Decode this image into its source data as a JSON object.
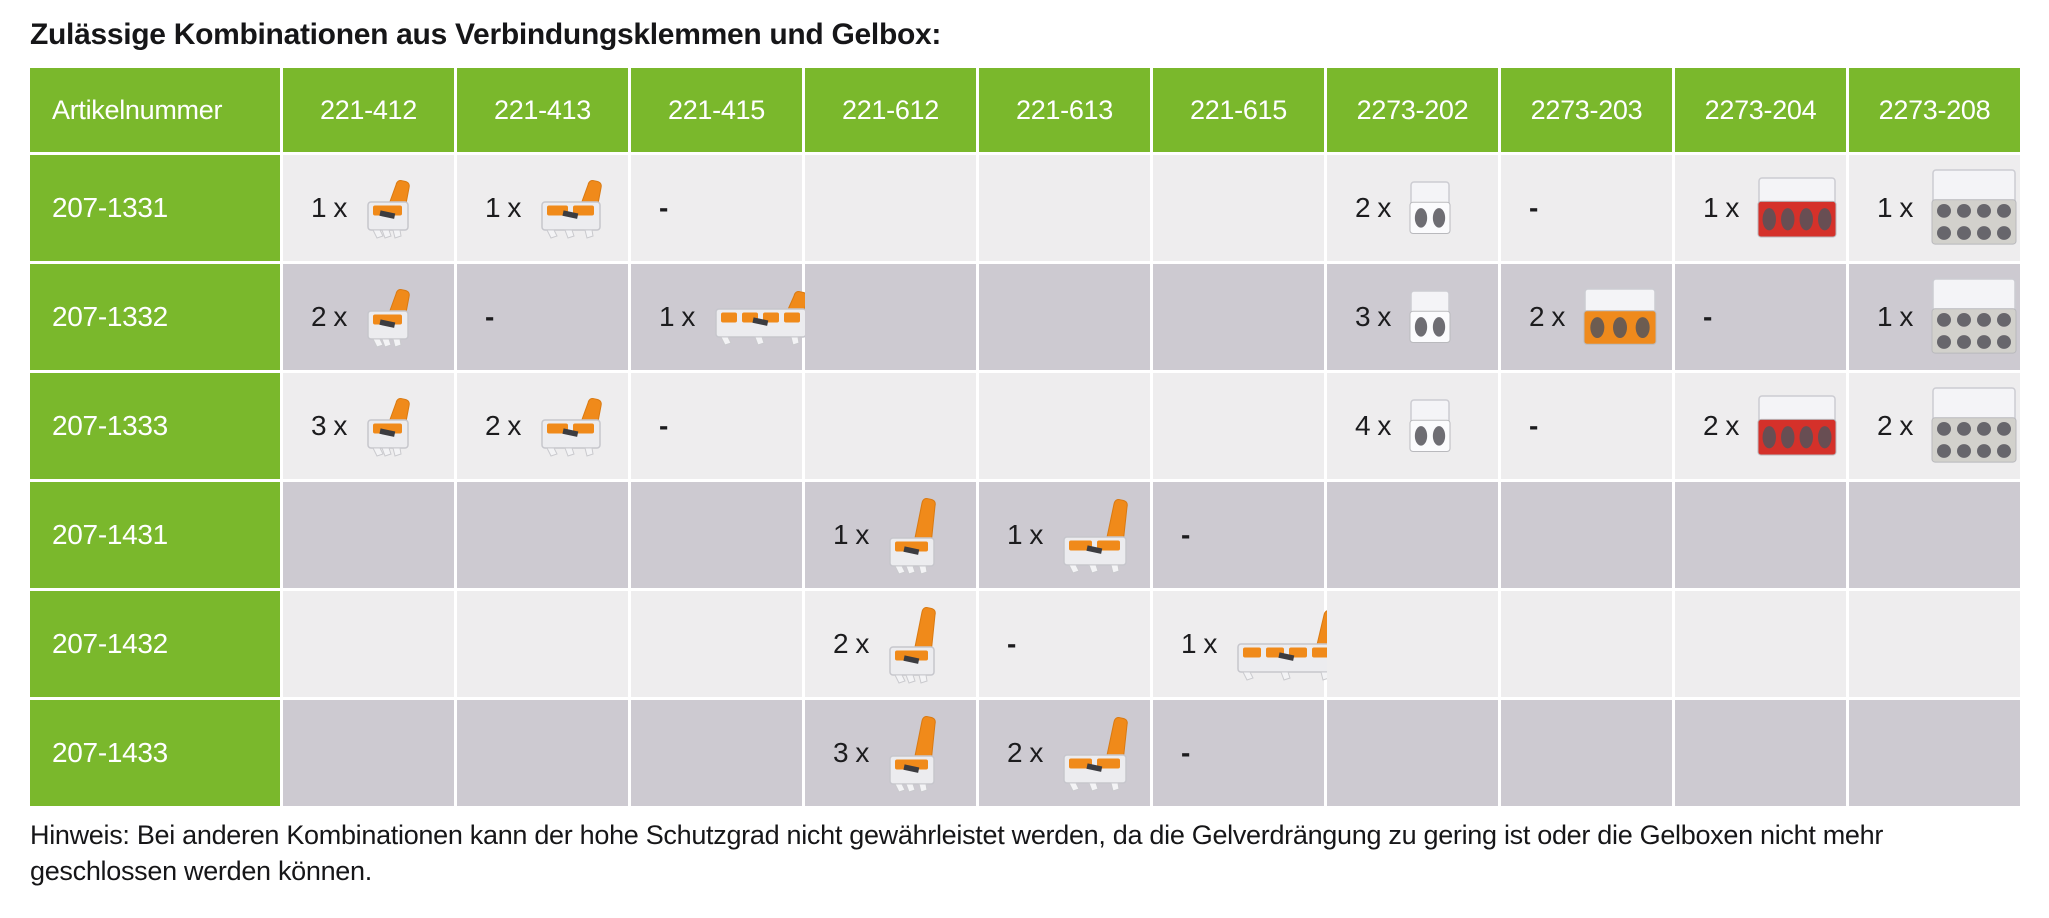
{
  "title": "Zulässige Kombinationen aus Verbindungsklemmen und Gelbox:",
  "note": "Hinweis: Bei anderen Kombinationen kann der hohe Schutzgrad nicht gewährleistet werden, da die Gelverdrängung zu gering ist oder die Gelboxen nicht mehr geschlossen werden können.",
  "colors": {
    "header_green": "#7ab82c",
    "row_light": "#eeedee",
    "row_dark": "#cdcad1",
    "lever_orange": "#f08a1a",
    "connector_red": "#d5312a",
    "connector_orange": "#ef8a1c",
    "connector_gray": "#d2d1cc",
    "text": "#161618"
  },
  "table": {
    "header": [
      "Artikelnummer",
      "221-412",
      "221-413",
      "221-415",
      "221-612",
      "221-613",
      "221-615",
      "2273-202",
      "2273-203",
      "2273-204",
      "2273-208"
    ],
    "rows": [
      {
        "label": "207-1331",
        "cells": [
          {
            "qty": "1 x",
            "icon": "connector-221-412"
          },
          {
            "qty": "1 x",
            "icon": "connector-221-413"
          },
          {
            "text": "-"
          },
          null,
          null,
          null,
          {
            "qty": "2 x",
            "icon": "connector-2273-202"
          },
          {
            "text": "-"
          },
          {
            "qty": "1 x",
            "icon": "connector-2273-204"
          },
          {
            "qty": "1 x",
            "icon": "connector-2273-208"
          }
        ]
      },
      {
        "label": "207-1332",
        "cells": [
          {
            "qty": "2 x",
            "icon": "connector-221-412"
          },
          {
            "text": "-"
          },
          {
            "qty": "1 x",
            "icon": "connector-221-415"
          },
          null,
          null,
          null,
          {
            "qty": "3 x",
            "icon": "connector-2273-202"
          },
          {
            "qty": "2 x",
            "icon": "connector-2273-203"
          },
          {
            "text": "-"
          },
          {
            "qty": "1 x",
            "icon": "connector-2273-208"
          }
        ]
      },
      {
        "label": "207-1333",
        "cells": [
          {
            "qty": "3 x",
            "icon": "connector-221-412"
          },
          {
            "qty": "2 x",
            "icon": "connector-221-413"
          },
          {
            "text": "-"
          },
          null,
          null,
          null,
          {
            "qty": "4 x",
            "icon": "connector-2273-202"
          },
          {
            "text": "-"
          },
          {
            "qty": "2 x",
            "icon": "connector-2273-204"
          },
          {
            "qty": "2 x",
            "icon": "connector-2273-208"
          }
        ]
      },
      {
        "label": "207-1431",
        "cells": [
          null,
          null,
          null,
          {
            "qty": "1 x",
            "icon": "connector-221-612"
          },
          {
            "qty": "1 x",
            "icon": "connector-221-613"
          },
          {
            "text": "-"
          },
          null,
          null,
          null,
          null
        ]
      },
      {
        "label": "207-1432",
        "cells": [
          null,
          null,
          null,
          {
            "qty": "2 x",
            "icon": "connector-221-612"
          },
          {
            "text": "-"
          },
          {
            "qty": "1 x",
            "icon": "connector-221-615"
          },
          null,
          null,
          null,
          null
        ]
      },
      {
        "label": "207-1433",
        "cells": [
          null,
          null,
          null,
          {
            "qty": "3 x",
            "icon": "connector-221-612"
          },
          {
            "qty": "2 x",
            "icon": "connector-221-613"
          },
          {
            "text": "-"
          },
          null,
          null,
          null,
          null
        ]
      }
    ]
  }
}
